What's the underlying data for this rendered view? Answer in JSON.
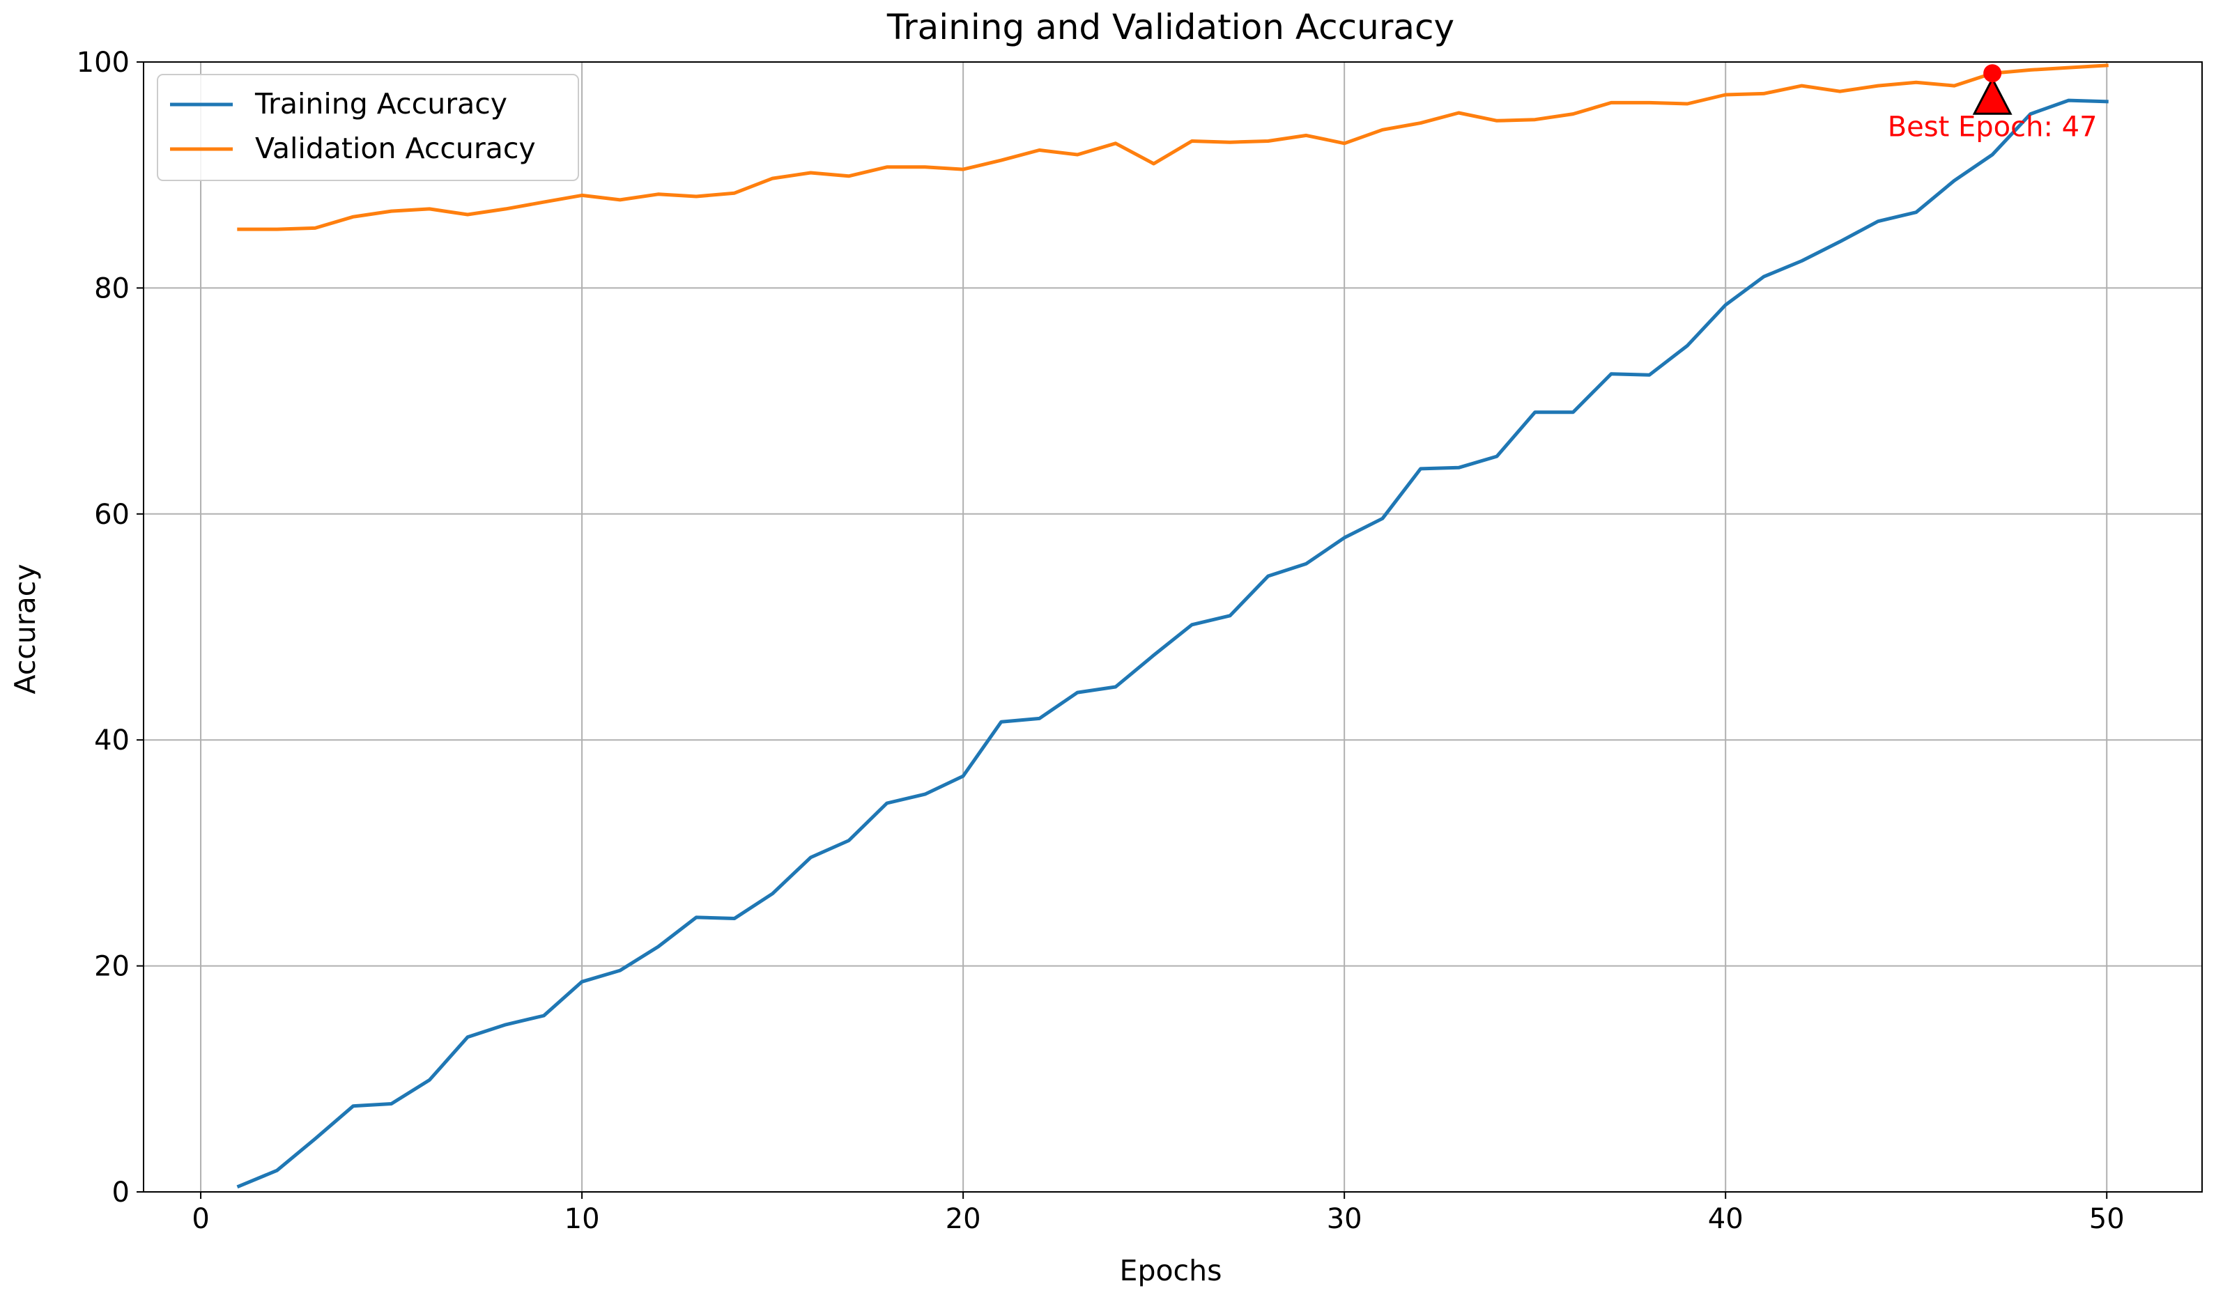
{
  "chart_data": {
    "type": "line",
    "title": "Training and Validation Accuracy",
    "xlabel": "Epochs",
    "ylabel": "Accuracy",
    "xlim": [
      -1.5,
      52.5
    ],
    "ylim": [
      0,
      100
    ],
    "xticks": [
      0,
      10,
      20,
      30,
      40,
      50
    ],
    "yticks": [
      0,
      20,
      40,
      60,
      80,
      100
    ],
    "grid": true,
    "legend": "upper-left",
    "x": [
      1,
      2,
      3,
      4,
      5,
      6,
      7,
      8,
      9,
      10,
      11,
      12,
      13,
      14,
      15,
      16,
      17,
      18,
      19,
      20,
      21,
      22,
      23,
      24,
      25,
      26,
      27,
      28,
      29,
      30,
      31,
      32,
      33,
      34,
      35,
      36,
      37,
      38,
      39,
      40,
      41,
      42,
      43,
      44,
      45,
      46,
      47,
      48,
      49,
      50
    ],
    "series": [
      {
        "name": "Training Accuracy",
        "color": "#1f77b4",
        "values": [
          0.5,
          1.9,
          4.7,
          7.6,
          7.8,
          9.9,
          13.7,
          14.8,
          15.6,
          18.6,
          19.6,
          21.7,
          24.3,
          24.2,
          26.4,
          29.6,
          31.1,
          34.4,
          35.2,
          36.8,
          41.6,
          41.9,
          44.2,
          44.7,
          47.5,
          50.2,
          51.0,
          54.5,
          55.6,
          57.9,
          59.6,
          64.0,
          64.1,
          65.1,
          69.0,
          69.0,
          72.4,
          72.3,
          74.9,
          78.5,
          81.0,
          82.4,
          84.1,
          85.9,
          86.7,
          89.5,
          91.8,
          95.4,
          96.6,
          96.5
        ]
      },
      {
        "name": "Validation Accuracy",
        "color": "#ff7f0e",
        "values": [
          85.2,
          85.2,
          85.3,
          86.3,
          86.8,
          87.0,
          86.5,
          87.0,
          87.6,
          88.2,
          87.8,
          88.3,
          88.1,
          88.4,
          89.7,
          90.2,
          89.9,
          90.7,
          90.7,
          90.5,
          91.3,
          92.2,
          91.8,
          92.8,
          91.0,
          93.0,
          92.9,
          93.0,
          93.5,
          92.8,
          94.0,
          94.6,
          95.5,
          94.8,
          94.9,
          95.4,
          96.4,
          96.4,
          96.3,
          97.1,
          97.2,
          97.9,
          97.4,
          97.9,
          98.2,
          97.9,
          99.0,
          99.3,
          99.5,
          99.7
        ]
      }
    ],
    "annotations": [
      {
        "text": "Best Epoch: 47",
        "x": 47,
        "y": 99.0,
        "color": "#ff0000",
        "text_x": 47,
        "text_y": 94.3
      }
    ]
  }
}
